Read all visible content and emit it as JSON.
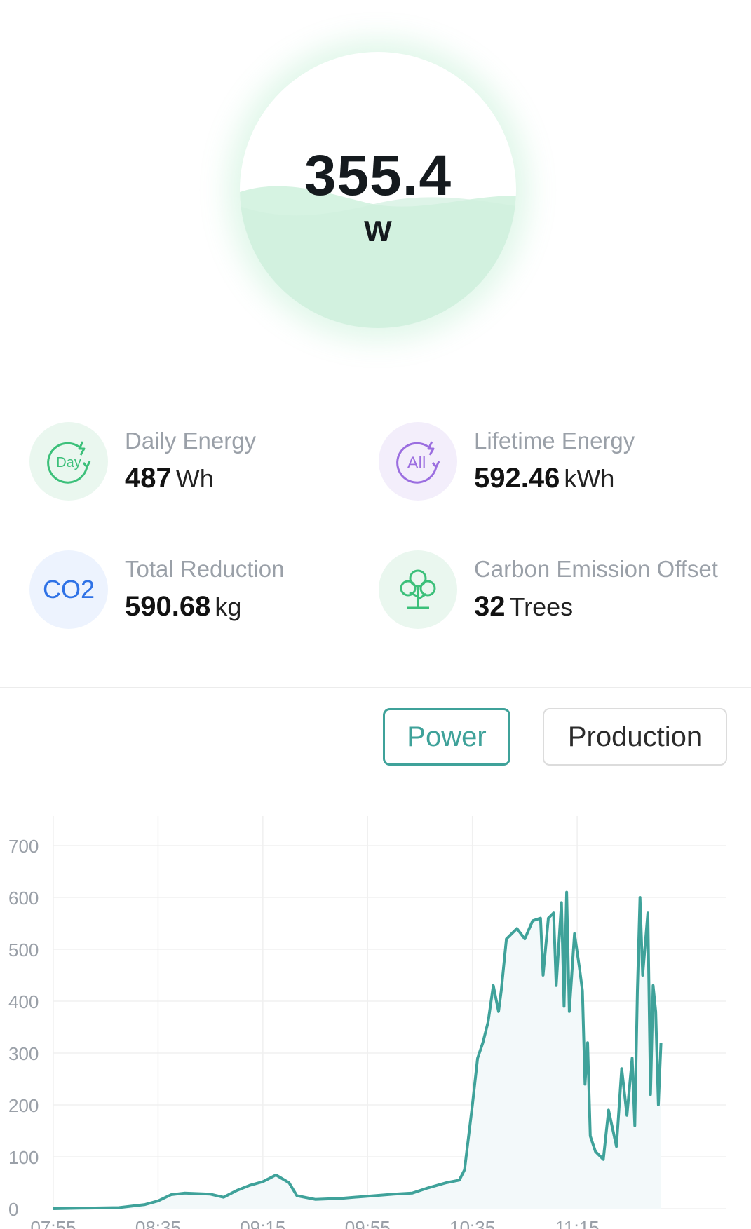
{
  "gauge": {
    "value": "355.4",
    "unit": "W"
  },
  "stats": {
    "daily": {
      "icon": "day-energy-icon",
      "icon_text": "Day",
      "label": "Daily Energy",
      "value": "487",
      "unit": "Wh"
    },
    "lifetime": {
      "icon": "lifetime-energy-icon",
      "icon_text": "All",
      "label": "Lifetime Energy",
      "value": "592.46",
      "unit": "kWh"
    },
    "reduction": {
      "icon": "co2-icon",
      "icon_text": "CO2",
      "label": "Total Reduction",
      "value": "590.68",
      "unit": "kg"
    },
    "offset": {
      "icon": "tree-icon",
      "label": "Carbon Emission Offset",
      "value": "32",
      "unit": "Trees"
    }
  },
  "tabs": {
    "power": "Power",
    "production": "Production"
  },
  "colors": {
    "accent": "#3fa29a",
    "gauge_fill": "#d6f3e2",
    "day_icon": "#3cc07a",
    "all_icon": "#9b6ee0",
    "co2_icon": "#2f72e6",
    "tree_icon": "#3cc07a"
  },
  "chart_data": {
    "type": "area",
    "ylim": [
      0,
      700
    ],
    "yticks": [
      0,
      100,
      200,
      300,
      400,
      500,
      600,
      700
    ],
    "x_ticks": [
      "07:55",
      "08:35",
      "09:15",
      "09:55",
      "10:35",
      "11:15"
    ],
    "x_range": [
      "07:55",
      "12:12"
    ],
    "series": [
      {
        "points": [
          [
            "07:55",
            0
          ],
          [
            "08:05",
            1
          ],
          [
            "08:20",
            2
          ],
          [
            "08:30",
            8
          ],
          [
            "08:35",
            15
          ],
          [
            "08:40",
            27
          ],
          [
            "08:45",
            30
          ],
          [
            "08:55",
            28
          ],
          [
            "09:00",
            22
          ],
          [
            "09:05",
            35
          ],
          [
            "09:10",
            45
          ],
          [
            "09:15",
            52
          ],
          [
            "09:20",
            65
          ],
          [
            "09:25",
            50
          ],
          [
            "09:28",
            25
          ],
          [
            "09:35",
            18
          ],
          [
            "09:45",
            20
          ],
          [
            "09:55",
            24
          ],
          [
            "10:05",
            28
          ],
          [
            "10:12",
            30
          ],
          [
            "10:18",
            40
          ],
          [
            "10:25",
            50
          ],
          [
            "10:30",
            55
          ],
          [
            "10:32",
            75
          ],
          [
            "10:35",
            200
          ],
          [
            "10:37",
            290
          ],
          [
            "10:39",
            320
          ],
          [
            "10:41",
            360
          ],
          [
            "10:43",
            430
          ],
          [
            "10:45",
            380
          ],
          [
            "10:46",
            420
          ],
          [
            "10:48",
            520
          ],
          [
            "10:52",
            540
          ],
          [
            "10:55",
            520
          ],
          [
            "10:58",
            555
          ],
          [
            "11:01",
            560
          ],
          [
            "11:02",
            450
          ],
          [
            "11:04",
            560
          ],
          [
            "11:06",
            570
          ],
          [
            "11:07",
            430
          ],
          [
            "11:09",
            590
          ],
          [
            "11:10",
            390
          ],
          [
            "11:11",
            610
          ],
          [
            "11:12",
            380
          ],
          [
            "11:14",
            530
          ],
          [
            "11:16",
            460
          ],
          [
            "11:17",
            420
          ],
          [
            "11:18",
            240
          ],
          [
            "11:19",
            320
          ],
          [
            "11:20",
            140
          ],
          [
            "11:22",
            110
          ],
          [
            "11:25",
            95
          ],
          [
            "11:27",
            190
          ],
          [
            "11:30",
            120
          ],
          [
            "11:32",
            270
          ],
          [
            "11:34",
            180
          ],
          [
            "11:36",
            290
          ],
          [
            "11:37",
            160
          ],
          [
            "11:38",
            420
          ],
          [
            "11:39",
            600
          ],
          [
            "11:40",
            450
          ],
          [
            "11:42",
            570
          ],
          [
            "11:43",
            220
          ],
          [
            "11:44",
            430
          ],
          [
            "11:45",
            380
          ],
          [
            "11:46",
            200
          ],
          [
            "11:47",
            320
          ]
        ]
      }
    ]
  }
}
